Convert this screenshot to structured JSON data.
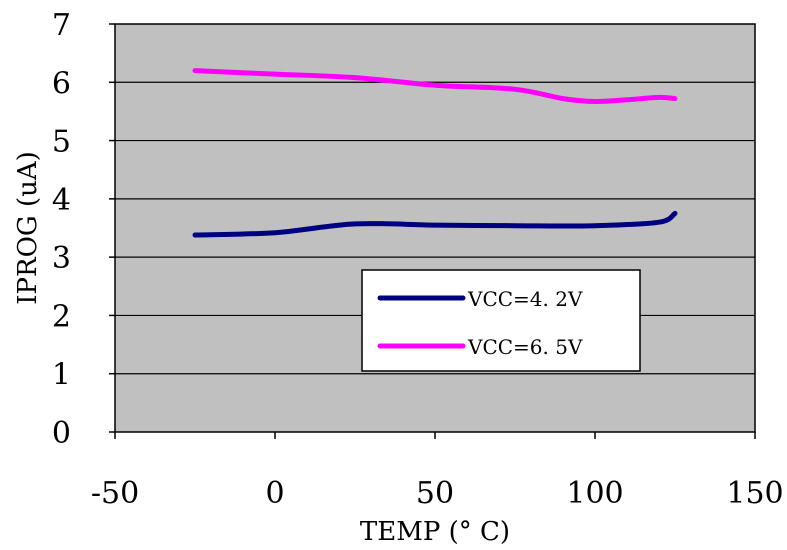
{
  "chart_data": {
    "type": "line",
    "title": "",
    "xlabel": "TEMP (° C)",
    "ylabel": "IPROG (uA)",
    "xlim": [
      -50,
      150
    ],
    "ylim": [
      0,
      7
    ],
    "xticks": [
      "-50",
      "0",
      "50",
      "100",
      "150"
    ],
    "yticks": [
      "0",
      "1",
      "2",
      "3",
      "4",
      "5",
      "6",
      "7"
    ],
    "grid": "horizontal",
    "plot_background": "#c0c0c0",
    "legend_position": "lower-right",
    "series": [
      {
        "name": "VCC=4. 2V",
        "color": "#000080",
        "x": [
          -25,
          0,
          25,
          50,
          75,
          100,
          120,
          125
        ],
        "y": [
          3.38,
          3.42,
          3.57,
          3.55,
          3.54,
          3.54,
          3.6,
          3.75
        ]
      },
      {
        "name": "VCC=6. 5V",
        "color": "#ff00ff",
        "x": [
          -25,
          0,
          25,
          50,
          75,
          90,
          100,
          110,
          120,
          125
        ],
        "y": [
          6.2,
          6.14,
          6.08,
          5.95,
          5.88,
          5.72,
          5.67,
          5.7,
          5.74,
          5.72
        ]
      }
    ]
  }
}
